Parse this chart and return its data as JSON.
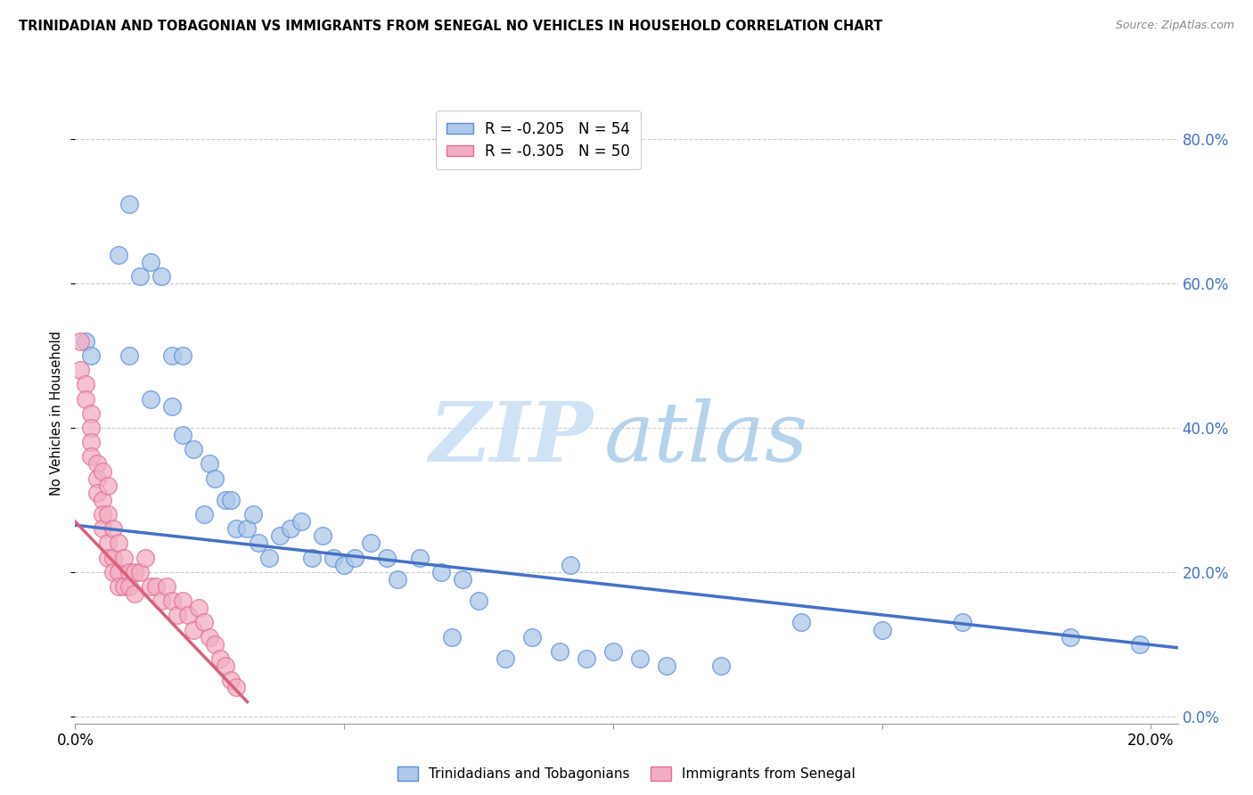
{
  "title": "TRINIDADIAN AND TOBAGONIAN VS IMMIGRANTS FROM SENEGAL NO VEHICLES IN HOUSEHOLD CORRELATION CHART",
  "source": "Source: ZipAtlas.com",
  "ylabel": "No Vehicles in Household",
  "legend_blue": "R = -0.205   N = 54",
  "legend_pink": "R = -0.305   N = 50",
  "legend_label_blue": "Trinidadians and Tobagonians",
  "legend_label_pink": "Immigrants from Senegal",
  "watermark_zip": "ZIP",
  "watermark_atlas": "atlas",
  "blue_color": "#adc8e8",
  "pink_color": "#f2aec4",
  "blue_edge_color": "#5b8dd9",
  "pink_edge_color": "#e07090",
  "blue_line_color": "#4472c4",
  "pink_line_color": "#d9607a",
  "right_axis_color": "#4472c4",
  "blue_scatter": [
    [
      0.002,
      0.52
    ],
    [
      0.003,
      0.5
    ],
    [
      0.008,
      0.64
    ],
    [
      0.01,
      0.71
    ],
    [
      0.012,
      0.61
    ],
    [
      0.014,
      0.63
    ],
    [
      0.016,
      0.61
    ],
    [
      0.018,
      0.5
    ],
    [
      0.01,
      0.5
    ],
    [
      0.014,
      0.44
    ],
    [
      0.02,
      0.5
    ],
    [
      0.018,
      0.43
    ],
    [
      0.02,
      0.39
    ],
    [
      0.022,
      0.37
    ],
    [
      0.024,
      0.28
    ],
    [
      0.025,
      0.35
    ],
    [
      0.026,
      0.33
    ],
    [
      0.028,
      0.3
    ],
    [
      0.029,
      0.3
    ],
    [
      0.03,
      0.26
    ],
    [
      0.032,
      0.26
    ],
    [
      0.033,
      0.28
    ],
    [
      0.034,
      0.24
    ],
    [
      0.036,
      0.22
    ],
    [
      0.038,
      0.25
    ],
    [
      0.04,
      0.26
    ],
    [
      0.042,
      0.27
    ],
    [
      0.044,
      0.22
    ],
    [
      0.046,
      0.25
    ],
    [
      0.048,
      0.22
    ],
    [
      0.05,
      0.21
    ],
    [
      0.052,
      0.22
    ],
    [
      0.055,
      0.24
    ],
    [
      0.058,
      0.22
    ],
    [
      0.06,
      0.19
    ],
    [
      0.064,
      0.22
    ],
    [
      0.068,
      0.2
    ],
    [
      0.07,
      0.11
    ],
    [
      0.072,
      0.19
    ],
    [
      0.075,
      0.16
    ],
    [
      0.08,
      0.08
    ],
    [
      0.085,
      0.11
    ],
    [
      0.09,
      0.09
    ],
    [
      0.092,
      0.21
    ],
    [
      0.095,
      0.08
    ],
    [
      0.1,
      0.09
    ],
    [
      0.105,
      0.08
    ],
    [
      0.11,
      0.07
    ],
    [
      0.12,
      0.07
    ],
    [
      0.135,
      0.13
    ],
    [
      0.15,
      0.12
    ],
    [
      0.165,
      0.13
    ],
    [
      0.185,
      0.11
    ],
    [
      0.198,
      0.1
    ]
  ],
  "pink_scatter": [
    [
      0.001,
      0.52
    ],
    [
      0.001,
      0.48
    ],
    [
      0.002,
      0.46
    ],
    [
      0.002,
      0.44
    ],
    [
      0.003,
      0.42
    ],
    [
      0.003,
      0.4
    ],
    [
      0.003,
      0.38
    ],
    [
      0.003,
      0.36
    ],
    [
      0.004,
      0.35
    ],
    [
      0.004,
      0.33
    ],
    [
      0.004,
      0.31
    ],
    [
      0.005,
      0.34
    ],
    [
      0.005,
      0.3
    ],
    [
      0.005,
      0.28
    ],
    [
      0.005,
      0.26
    ],
    [
      0.006,
      0.32
    ],
    [
      0.006,
      0.28
    ],
    [
      0.006,
      0.24
    ],
    [
      0.006,
      0.22
    ],
    [
      0.007,
      0.26
    ],
    [
      0.007,
      0.22
    ],
    [
      0.007,
      0.2
    ],
    [
      0.008,
      0.24
    ],
    [
      0.008,
      0.2
    ],
    [
      0.008,
      0.18
    ],
    [
      0.009,
      0.22
    ],
    [
      0.009,
      0.18
    ],
    [
      0.01,
      0.2
    ],
    [
      0.01,
      0.18
    ],
    [
      0.011,
      0.2
    ],
    [
      0.011,
      0.17
    ],
    [
      0.012,
      0.2
    ],
    [
      0.013,
      0.22
    ],
    [
      0.014,
      0.18
    ],
    [
      0.015,
      0.18
    ],
    [
      0.016,
      0.16
    ],
    [
      0.017,
      0.18
    ],
    [
      0.018,
      0.16
    ],
    [
      0.019,
      0.14
    ],
    [
      0.02,
      0.16
    ],
    [
      0.021,
      0.14
    ],
    [
      0.022,
      0.12
    ],
    [
      0.023,
      0.15
    ],
    [
      0.024,
      0.13
    ],
    [
      0.025,
      0.11
    ],
    [
      0.026,
      0.1
    ],
    [
      0.027,
      0.08
    ],
    [
      0.028,
      0.07
    ],
    [
      0.029,
      0.05
    ],
    [
      0.03,
      0.04
    ]
  ],
  "xlim": [
    0.0,
    0.205
  ],
  "ylim": [
    -0.01,
    0.85
  ],
  "yticks_right": [
    0.0,
    0.2,
    0.4,
    0.6,
    0.8
  ],
  "blue_trend_x": [
    0.0,
    0.205
  ],
  "blue_trend_y": [
    0.265,
    0.095
  ],
  "pink_trend_x": [
    0.0,
    0.032
  ],
  "pink_trend_y": [
    0.27,
    0.02
  ]
}
